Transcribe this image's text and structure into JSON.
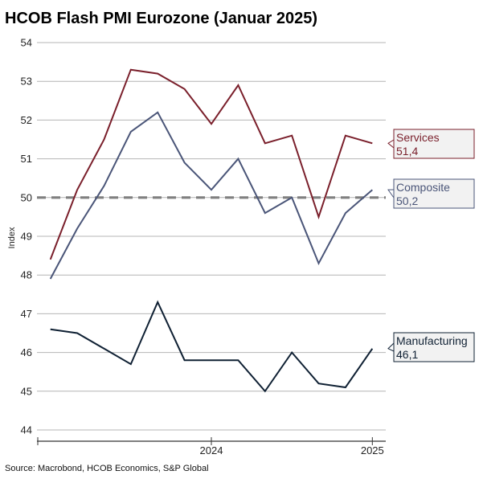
{
  "chart_data": {
    "type": "line",
    "title": "HCOB Flash PMI Eurozone (Januar 2025)",
    "ylabel": "Index",
    "xlabel": "",
    "ylim": [
      44,
      54
    ],
    "yticks": [
      44,
      45,
      46,
      47,
      48,
      49,
      50,
      51,
      52,
      53,
      54
    ],
    "xticks": [
      {
        "label": "2024",
        "x": 6
      },
      {
        "label": "2025",
        "x": 12
      }
    ],
    "x": [
      0,
      1,
      2,
      3,
      4,
      5,
      6,
      7,
      8,
      9,
      10,
      11,
      12
    ],
    "x_range": [
      -0.5,
      12.5
    ],
    "reference_line": {
      "y": 50,
      "color": "#808080"
    },
    "grid": true,
    "series": [
      {
        "name": "Services",
        "color": "#7a1f2b",
        "values": [
          48.4,
          50.2,
          51.5,
          53.3,
          53.2,
          52.8,
          51.9,
          52.9,
          51.4,
          51.6,
          49.5,
          51.6,
          51.4
        ],
        "label_value": "51,4"
      },
      {
        "name": "Composite",
        "color": "#4a5578",
        "values": [
          47.9,
          49.2,
          50.3,
          51.7,
          52.2,
          50.9,
          50.2,
          51.0,
          49.6,
          50.0,
          48.3,
          49.6,
          50.2
        ],
        "label_value": "50,2"
      },
      {
        "name": "Manufacturing",
        "color": "#0f2033",
        "values": [
          46.6,
          46.5,
          46.1,
          45.7,
          47.3,
          45.8,
          45.8,
          45.8,
          45.0,
          46.0,
          45.2,
          45.1,
          46.1
        ],
        "label_value": "46,1"
      }
    ],
    "source": "Source: Macrobond, HCOB Economics, S&P Global"
  }
}
